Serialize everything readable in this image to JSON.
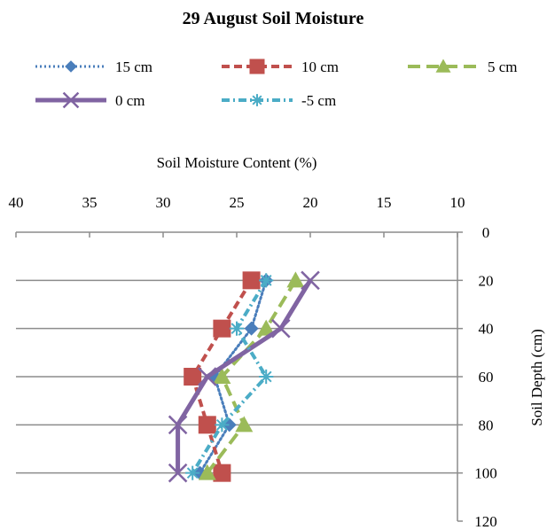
{
  "chart_data": {
    "type": "line",
    "title": "29 August Soil Moisture",
    "xlabel": "Soil Moisture Content (%)",
    "ylabel": "Soil Depth (cm)",
    "x_axis": {
      "position": "top",
      "reversed": true,
      "range": [
        10,
        40
      ],
      "ticks": [
        40,
        35,
        30,
        25,
        20,
        15,
        10
      ]
    },
    "y_axis": {
      "position": "right",
      "reversed": true,
      "range": [
        0,
        120
      ],
      "ticks": [
        0,
        20,
        40,
        60,
        80,
        100,
        120
      ]
    },
    "grid": {
      "horizontal": true,
      "vertical": false
    },
    "legend": {
      "position": "top"
    },
    "series": [
      {
        "name": "15 cm",
        "color": "#4a7ebb",
        "dash": "dotted",
        "marker": "diamond",
        "points": [
          [
            23,
            20
          ],
          [
            24,
            40
          ],
          [
            26.5,
            60
          ],
          [
            25.5,
            80
          ],
          [
            27.5,
            100
          ]
        ]
      },
      {
        "name": "10 cm",
        "color": "#c0504d",
        "dash": "dashed",
        "marker": "square",
        "points": [
          [
            24,
            20
          ],
          [
            26,
            40
          ],
          [
            28,
            60
          ],
          [
            27,
            80
          ],
          [
            26,
            100
          ]
        ]
      },
      {
        "name": "5 cm",
        "color": "#9bbb59",
        "dash": "longdash",
        "marker": "triangle",
        "points": [
          [
            21,
            20
          ],
          [
            23,
            40
          ],
          [
            26,
            60
          ],
          [
            24.5,
            80
          ],
          [
            27,
            100
          ]
        ]
      },
      {
        "name": "0 cm",
        "color": "#8064a2",
        "dash": "solid",
        "marker": "x",
        "points": [
          [
            20,
            20
          ],
          [
            22,
            40
          ],
          [
            27,
            60
          ],
          [
            29,
            80
          ],
          [
            29,
            100
          ]
        ]
      },
      {
        "name": "-5 cm",
        "color": "#4bacc6",
        "dash": "dashdot",
        "marker": "star",
        "points": [
          [
            23,
            20
          ],
          [
            25,
            40
          ],
          [
            23,
            60
          ],
          [
            26,
            80
          ],
          [
            28,
            100
          ]
        ]
      }
    ]
  }
}
